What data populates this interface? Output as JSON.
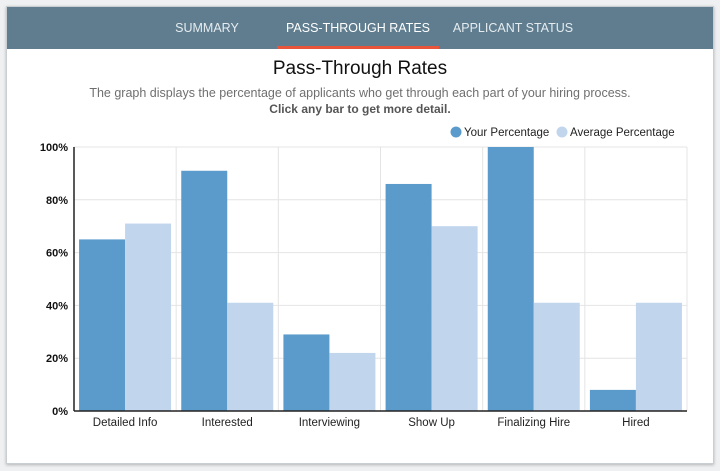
{
  "tabs": [
    {
      "label": "SUMMARY",
      "active": false
    },
    {
      "label": "PASS-THROUGH RATES",
      "active": true
    },
    {
      "label": "APPLICANT STATUS",
      "active": false
    }
  ],
  "colors": {
    "tabbar": "#5f7d8f",
    "active_underline": "#e8553b",
    "your_percentage": "#5b9bcb",
    "average_percentage": "#c1d5ed"
  },
  "header": {
    "title": "Pass-Through Rates",
    "subtitle": "The graph displays the percentage of applicants who get through each part of your hiring process.",
    "hint": "Click any bar to get more detail."
  },
  "chart_data": {
    "type": "bar",
    "categories": [
      "Detailed Info",
      "Interested",
      "Interviewing",
      "Show Up",
      "Finalizing Hire",
      "Hired"
    ],
    "series": [
      {
        "name": "Your Percentage",
        "values": [
          65,
          91,
          29,
          86,
          100,
          8
        ]
      },
      {
        "name": "Average Percentage",
        "values": [
          71,
          41,
          22,
          70,
          41,
          41
        ]
      }
    ],
    "ylim": [
      0,
      100
    ],
    "yticks": [
      "0%",
      "20%",
      "40%",
      "60%",
      "80%",
      "100%"
    ],
    "grid": true,
    "legend": "top-right"
  }
}
